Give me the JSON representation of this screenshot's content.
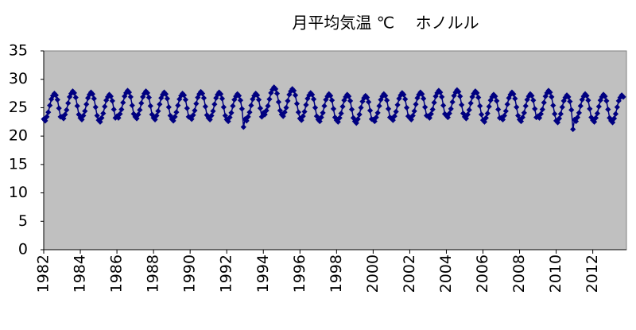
{
  "chart_data": {
    "type": "line",
    "title": "月平均気温 ℃　 ホノルル",
    "color": "#000080",
    "plot_background": "#c0c0c0",
    "ylim": [
      0,
      35
    ],
    "yticks": [
      0,
      5,
      10,
      15,
      20,
      25,
      30,
      35
    ],
    "categories": [
      "1982",
      null,
      null,
      null,
      null,
      null,
      null,
      null,
      null,
      null,
      null,
      null,
      null,
      null,
      null,
      null,
      null,
      null,
      null,
      null,
      null,
      null,
      null,
      null,
      "1984",
      null,
      null,
      null,
      null,
      null,
      null,
      null,
      null,
      null,
      null,
      null,
      null,
      null,
      null,
      null,
      null,
      null,
      null,
      null,
      null,
      null,
      null,
      null,
      "1986",
      null,
      null,
      null,
      null,
      null,
      null,
      null,
      null,
      null,
      null,
      null,
      null,
      null,
      null,
      null,
      null,
      null,
      null,
      null,
      null,
      null,
      null,
      null,
      "1988",
      null,
      null,
      null,
      null,
      null,
      null,
      null,
      null,
      null,
      null,
      null,
      null,
      null,
      null,
      null,
      null,
      null,
      null,
      null,
      null,
      null,
      null,
      null,
      "1990",
      null,
      null,
      null,
      null,
      null,
      null,
      null,
      null,
      null,
      null,
      null,
      null,
      null,
      null,
      null,
      null,
      null,
      null,
      null,
      null,
      null,
      null,
      null,
      "1992",
      null,
      null,
      null,
      null,
      null,
      null,
      null,
      null,
      null,
      null,
      null,
      null,
      null,
      null,
      null,
      null,
      null,
      null,
      null,
      null,
      null,
      null,
      null,
      "1994",
      null,
      null,
      null,
      null,
      null,
      null,
      null,
      null,
      null,
      null,
      null,
      null,
      null,
      null,
      null,
      null,
      null,
      null,
      null,
      null,
      null,
      null,
      null,
      "1996",
      null,
      null,
      null,
      null,
      null,
      null,
      null,
      null,
      null,
      null,
      null,
      null,
      null,
      null,
      null,
      null,
      null,
      null,
      null,
      null,
      null,
      null,
      null,
      "1998",
      null,
      null,
      null,
      null,
      null,
      null,
      null,
      null,
      null,
      null,
      null,
      null,
      null,
      null,
      null,
      null,
      null,
      null,
      null,
      null,
      null,
      null,
      null,
      "2000",
      null,
      null,
      null,
      null,
      null,
      null,
      null,
      null,
      null,
      null,
      null,
      null,
      null,
      null,
      null,
      null,
      null,
      null,
      null,
      null,
      null,
      null,
      null,
      "2002",
      null,
      null,
      null,
      null,
      null,
      null,
      null,
      null,
      null,
      null,
      null,
      null,
      null,
      null,
      null,
      null,
      null,
      null,
      null,
      null,
      null,
      null,
      null,
      "2004",
      null,
      null,
      null,
      null,
      null,
      null,
      null,
      null,
      null,
      null,
      null,
      null,
      null,
      null,
      null,
      null,
      null,
      null,
      null,
      null,
      null,
      null,
      null,
      "2006",
      null,
      null,
      null,
      null,
      null,
      null,
      null,
      null,
      null,
      null,
      null,
      null,
      null,
      null,
      null,
      null,
      null,
      null,
      null,
      null,
      null,
      null,
      null,
      "2008",
      null,
      null,
      null,
      null,
      null,
      null,
      null,
      null,
      null,
      null,
      null,
      null,
      null,
      null,
      null,
      null,
      null,
      null,
      null,
      null,
      null,
      null,
      null,
      "2010",
      null,
      null,
      null,
      null,
      null,
      null,
      null,
      null,
      null,
      null,
      null,
      null,
      null,
      null,
      null,
      null,
      null,
      null,
      null,
      null,
      null,
      null,
      null,
      "2012",
      null,
      null,
      null,
      null,
      null,
      null,
      null,
      null,
      null,
      null,
      null,
      null,
      null,
      null,
      null,
      null,
      null,
      null,
      null,
      null
    ],
    "values": [
      23.0,
      22.7,
      23.4,
      24.2,
      25.4,
      26.5,
      27.1,
      27.5,
      27.2,
      26.4,
      24.9,
      23.4,
      23.4,
      23.1,
      23.8,
      24.6,
      25.8,
      26.9,
      27.5,
      27.9,
      27.6,
      26.8,
      25.3,
      23.8,
      23.2,
      22.9,
      23.6,
      24.4,
      25.6,
      26.7,
      27.3,
      27.7,
      27.4,
      26.6,
      25.1,
      23.6,
      22.8,
      22.5,
      23.2,
      24.0,
      25.2,
      26.3,
      26.9,
      27.3,
      27.0,
      26.2,
      24.7,
      23.2,
      23.5,
      23.2,
      23.9,
      24.7,
      25.9,
      27.0,
      27.6,
      28.0,
      27.7,
      26.9,
      25.4,
      23.9,
      23.4,
      23.1,
      23.8,
      24.6,
      25.8,
      26.9,
      27.5,
      27.9,
      27.6,
      26.8,
      25.3,
      23.8,
      23.2,
      22.9,
      23.6,
      24.4,
      25.6,
      26.7,
      27.3,
      27.7,
      27.4,
      26.6,
      25.1,
      23.6,
      23.0,
      22.7,
      23.4,
      24.2,
      25.4,
      26.5,
      27.1,
      27.5,
      27.2,
      26.4,
      24.9,
      23.4,
      23.3,
      23.0,
      23.7,
      24.5,
      25.7,
      26.8,
      27.4,
      27.8,
      27.5,
      26.7,
      25.2,
      23.7,
      23.2,
      22.9,
      23.6,
      24.4,
      25.6,
      26.7,
      27.3,
      27.7,
      27.4,
      26.6,
      25.1,
      23.6,
      22.9,
      22.6,
      23.3,
      24.1,
      25.3,
      26.4,
      27.0,
      27.4,
      27.1,
      26.3,
      24.8,
      21.6,
      23.0,
      22.7,
      23.4,
      24.2,
      25.4,
      26.5,
      27.1,
      27.5,
      27.2,
      26.4,
      24.9,
      23.4,
      24.1,
      23.8,
      24.5,
      25.3,
      26.5,
      27.6,
      28.2,
      28.6,
      28.3,
      27.5,
      26.0,
      24.5,
      23.8,
      23.5,
      24.2,
      25.0,
      26.2,
      27.3,
      27.9,
      28.3,
      28.0,
      27.2,
      25.7,
      24.2,
      23.1,
      22.8,
      23.5,
      24.3,
      25.5,
      26.6,
      27.2,
      27.6,
      27.3,
      26.5,
      25.0,
      23.5,
      22.9,
      22.6,
      23.3,
      24.1,
      25.3,
      26.4,
      27.0,
      27.4,
      27.1,
      26.3,
      24.8,
      23.3,
      22.8,
      22.5,
      23.2,
      24.0,
      25.2,
      26.3,
      26.9,
      27.3,
      27.0,
      26.2,
      24.7,
      23.2,
      22.6,
      22.3,
      23.0,
      23.8,
      25.0,
      26.1,
      26.7,
      27.1,
      26.8,
      26.0,
      24.5,
      23.0,
      22.9,
      22.6,
      23.3,
      24.1,
      25.3,
      26.4,
      27.0,
      27.4,
      27.1,
      26.3,
      24.8,
      23.3,
      23.1,
      22.8,
      23.5,
      24.3,
      25.5,
      26.6,
      27.2,
      27.6,
      27.3,
      26.5,
      25.0,
      23.5,
      23.2,
      22.9,
      23.6,
      24.4,
      25.6,
      26.7,
      27.3,
      27.7,
      27.4,
      26.6,
      25.1,
      23.6,
      23.5,
      23.2,
      23.9,
      24.7,
      25.9,
      27.0,
      27.6,
      28.0,
      27.7,
      26.9,
      25.4,
      23.9,
      23.6,
      23.3,
      24.0,
      24.8,
      26.0,
      27.1,
      27.7,
      28.1,
      27.8,
      27.0,
      25.5,
      24.0,
      23.4,
      23.1,
      23.8,
      24.6,
      25.8,
      26.9,
      27.5,
      27.9,
      27.6,
      26.8,
      25.3,
      23.8,
      22.8,
      22.5,
      23.2,
      24.0,
      25.2,
      26.3,
      26.9,
      27.3,
      27.0,
      26.2,
      24.7,
      23.2,
      23.2,
      22.9,
      23.6,
      24.4,
      25.6,
      26.7,
      27.3,
      27.7,
      27.4,
      26.6,
      25.1,
      23.6,
      22.9,
      22.6,
      23.3,
      24.1,
      25.3,
      26.4,
      27.0,
      27.4,
      27.1,
      26.3,
      24.8,
      23.3,
      23.5,
      23.2,
      23.9,
      24.7,
      25.9,
      27.0,
      27.6,
      28.0,
      27.7,
      26.9,
      25.4,
      23.9,
      22.7,
      22.4,
      23.1,
      23.9,
      25.1,
      26.2,
      26.8,
      27.2,
      26.9,
      26.1,
      24.6,
      21.2,
      22.9,
      22.6,
      23.3,
      24.1,
      25.3,
      26.4,
      27.0,
      27.4,
      27.1,
      26.3,
      24.8,
      23.3,
      22.8,
      22.5,
      23.2,
      24.0,
      25.2,
      26.3,
      26.9,
      27.3,
      27.0,
      26.2,
      24.7,
      23.2,
      22.7,
      22.4,
      23.1,
      23.9,
      25.1,
      26.2,
      26.8,
      27.2,
      26.9
    ]
  }
}
